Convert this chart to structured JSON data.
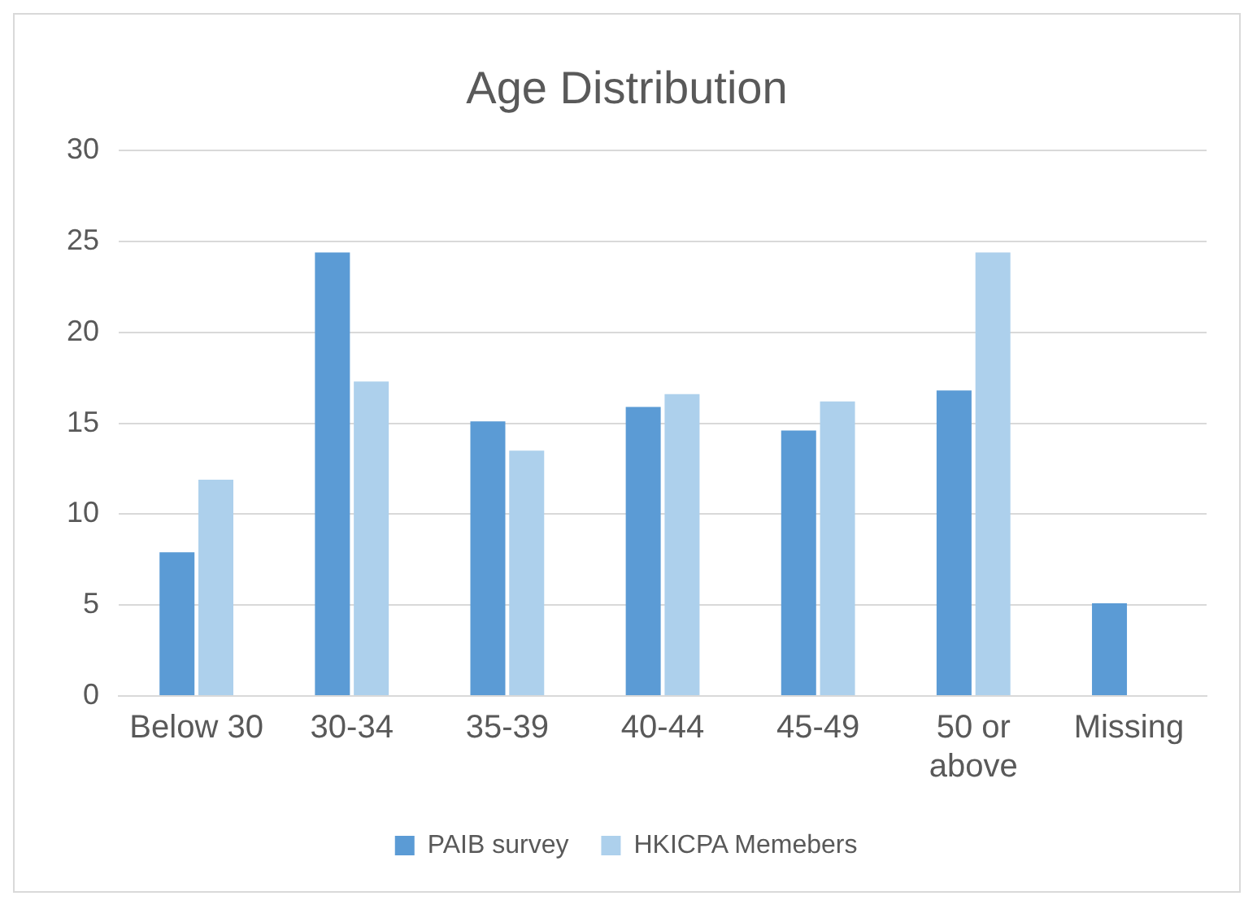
{
  "chart_data": {
    "type": "bar",
    "title": "Age Distribution",
    "categories": [
      "Below 30",
      "30-34",
      "35-39",
      "40-44",
      "45-49",
      "50 or above",
      "Missing"
    ],
    "series": [
      {
        "name": "PAIB survey",
        "color": "#5b9bd5",
        "values": [
          7.9,
          24.4,
          15.1,
          15.9,
          14.6,
          16.8,
          5.1
        ]
      },
      {
        "name": "HKICPA Memebers",
        "color": "#add0ec",
        "values": [
          11.9,
          17.3,
          13.5,
          16.6,
          16.2,
          24.4,
          null
        ]
      }
    ],
    "ylim": [
      0,
      30
    ],
    "yticks": [
      0,
      5,
      10,
      15,
      20,
      25,
      30
    ],
    "grid": "y",
    "legend": "bottom"
  }
}
